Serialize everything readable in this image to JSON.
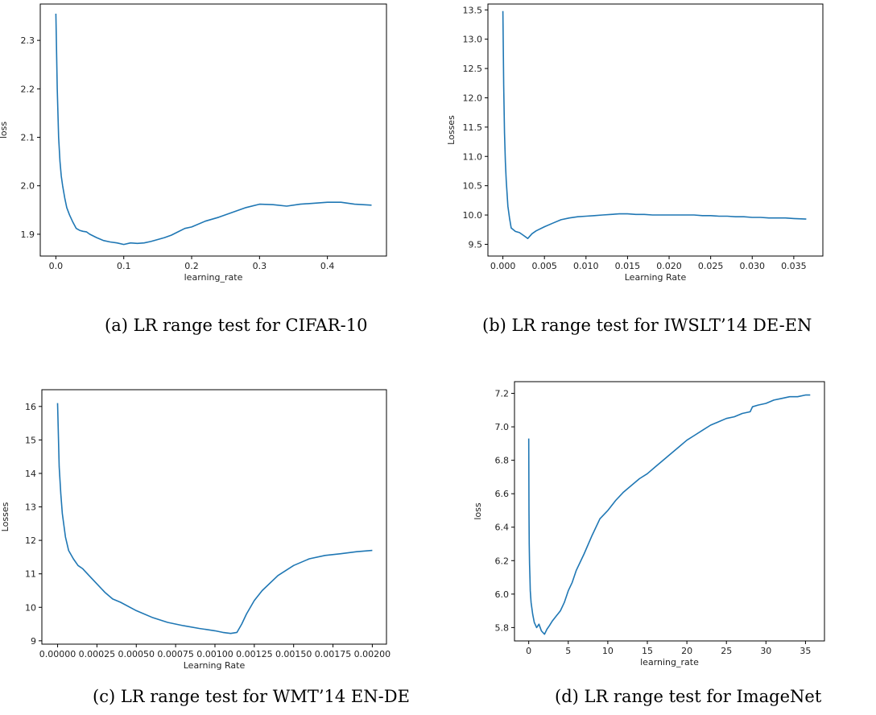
{
  "chart_data": [
    {
      "type": "line",
      "caption": "(a) LR range test for CIFAR-10",
      "xlabel": "learning_rate",
      "ylabel": "loss",
      "xlim": [
        -0.023,
        0.487
      ],
      "ylim": [
        1.855,
        2.375
      ],
      "xticks": [
        0.0,
        0.1,
        0.2,
        0.3,
        0.4
      ],
      "xtick_labels": [
        "0.0",
        "0.1",
        "0.2",
        "0.3",
        "0.4"
      ],
      "yticks": [
        1.9,
        2.0,
        2.1,
        2.2,
        2.3
      ],
      "ytick_labels": [
        "1.9",
        "2.0",
        "2.1",
        "2.2",
        "2.3"
      ],
      "series": [
        {
          "x": [
            0.0,
            0.002,
            0.004,
            0.006,
            0.008,
            0.01,
            0.013,
            0.016,
            0.02,
            0.025,
            0.03,
            0.035,
            0.04,
            0.045,
            0.05,
            0.06,
            0.07,
            0.08,
            0.09,
            0.1,
            0.11,
            0.12,
            0.13,
            0.14,
            0.15,
            0.16,
            0.17,
            0.18,
            0.19,
            0.2,
            0.22,
            0.24,
            0.26,
            0.28,
            0.3,
            0.32,
            0.34,
            0.36,
            0.38,
            0.4,
            0.42,
            0.44,
            0.465
          ],
          "y": [
            2.355,
            2.2,
            2.1,
            2.05,
            2.02,
            2.0,
            1.975,
            1.955,
            1.94,
            1.925,
            1.912,
            1.908,
            1.906,
            1.905,
            1.9,
            1.893,
            1.887,
            1.884,
            1.882,
            1.879,
            1.882,
            1.881,
            1.882,
            1.885,
            1.889,
            1.893,
            1.898,
            1.905,
            1.912,
            1.915,
            1.927,
            1.935,
            1.945,
            1.955,
            1.962,
            1.961,
            1.958,
            1.962,
            1.964,
            1.966,
            1.966,
            1.962,
            1.96
          ]
        }
      ]
    },
    {
      "type": "line",
      "caption": "(b) LR range test for IWSLT’14 DE-EN",
      "xlabel": "Learning Rate",
      "ylabel": "Losses",
      "xlim": [
        -0.0018,
        0.0385
      ],
      "ylim": [
        9.3,
        13.6
      ],
      "xticks": [
        0.0,
        0.005,
        0.01,
        0.015,
        0.02,
        0.025,
        0.03,
        0.035
      ],
      "xtick_labels": [
        "0.000",
        "0.005",
        "0.010",
        "0.015",
        "0.020",
        "0.025",
        "0.030",
        "0.035"
      ],
      "yticks": [
        9.5,
        10.0,
        10.5,
        11.0,
        11.5,
        12.0,
        12.5,
        13.0,
        13.5
      ],
      "ytick_labels": [
        "9.5",
        "10.0",
        "10.5",
        "11.0",
        "11.5",
        "12.0",
        "12.5",
        "13.0",
        "13.5"
      ],
      "series": [
        {
          "x": [
            0.0,
            0.0001,
            0.0002,
            0.0003,
            0.0004,
            0.0006,
            0.0008,
            0.001,
            0.0015,
            0.002,
            0.0025,
            0.003,
            0.0035,
            0.004,
            0.005,
            0.006,
            0.007,
            0.008,
            0.009,
            0.01,
            0.011,
            0.012,
            0.013,
            0.014,
            0.015,
            0.016,
            0.017,
            0.018,
            0.019,
            0.02,
            0.021,
            0.022,
            0.023,
            0.024,
            0.025,
            0.026,
            0.027,
            0.028,
            0.029,
            0.03,
            0.031,
            0.032,
            0.033,
            0.034,
            0.035,
            0.0365
          ],
          "y": [
            13.48,
            12.2,
            11.4,
            10.9,
            10.6,
            10.15,
            9.95,
            9.78,
            9.72,
            9.7,
            9.65,
            9.6,
            9.68,
            9.73,
            9.8,
            9.86,
            9.92,
            9.95,
            9.97,
            9.98,
            9.99,
            10.0,
            10.01,
            10.02,
            10.02,
            10.01,
            10.01,
            10.0,
            10.0,
            10.0,
            10.0,
            10.0,
            10.0,
            9.99,
            9.99,
            9.98,
            9.98,
            9.97,
            9.97,
            9.96,
            9.96,
            9.95,
            9.95,
            9.95,
            9.94,
            9.93
          ]
        }
      ]
    },
    {
      "type": "line",
      "caption": "(c) LR range test for WMT’14 EN-DE",
      "xlabel": "Learning Rate",
      "ylabel": "Losses",
      "xlim": [
        -0.0001,
        0.00209
      ],
      "ylim": [
        8.9,
        16.5
      ],
      "xticks": [
        0.0,
        0.00025,
        0.0005,
        0.00075,
        0.001,
        0.00125,
        0.0015,
        0.00175,
        0.002
      ],
      "xtick_labels": [
        "0.00000",
        "0.00025",
        "0.00050",
        "0.00075",
        "0.00100",
        "0.00125",
        "0.00150",
        "0.00175",
        "0.00200"
      ],
      "yticks": [
        9,
        10,
        11,
        12,
        13,
        14,
        15,
        16
      ],
      "ytick_labels": [
        "9",
        "10",
        "11",
        "12",
        "13",
        "14",
        "15",
        "16"
      ],
      "series": [
        {
          "x": [
            0.0,
            1e-05,
            2e-05,
            3e-05,
            5e-05,
            7e-05,
            0.0001,
            0.00013,
            0.00016,
            0.0002,
            0.00025,
            0.0003,
            0.00035,
            0.0004,
            0.0005,
            0.0006,
            0.0007,
            0.0008,
            0.0009,
            0.001,
            0.00105,
            0.0011,
            0.00114,
            0.00117,
            0.0012,
            0.00125,
            0.0013,
            0.0014,
            0.0015,
            0.0016,
            0.0017,
            0.0018,
            0.0019,
            0.002
          ],
          "y": [
            16.1,
            14.2,
            13.4,
            12.8,
            12.1,
            11.7,
            11.45,
            11.25,
            11.15,
            10.95,
            10.7,
            10.45,
            10.25,
            10.15,
            9.9,
            9.7,
            9.55,
            9.45,
            9.37,
            9.3,
            9.25,
            9.22,
            9.25,
            9.5,
            9.8,
            10.2,
            10.5,
            10.95,
            11.25,
            11.45,
            11.55,
            11.6,
            11.66,
            11.7
          ]
        }
      ]
    },
    {
      "type": "line",
      "caption": "(d) LR range test for ImageNet",
      "xlabel": "learning_rate",
      "ylabel": "loss",
      "xlim": [
        -1.8,
        37.4
      ],
      "ylim": [
        5.72,
        7.27
      ],
      "xticks": [
        0,
        5,
        10,
        15,
        20,
        25,
        30,
        35
      ],
      "xtick_labels": [
        "0",
        "5",
        "10",
        "15",
        "20",
        "25",
        "30",
        "35"
      ],
      "yticks": [
        5.8,
        6.0,
        6.2,
        6.4,
        6.6,
        6.8,
        7.0,
        7.2
      ],
      "ytick_labels": [
        "5.8",
        "6.0",
        "6.2",
        "6.4",
        "6.6",
        "6.8",
        "7.0",
        "7.2"
      ],
      "series": [
        {
          "x": [
            0.0,
            0.03,
            0.06,
            0.1,
            0.15,
            0.2,
            0.3,
            0.5,
            0.7,
            1.0,
            1.3,
            1.6,
            2.0,
            2.3,
            2.6,
            3.0,
            3.5,
            4.0,
            4.5,
            5.0,
            5.5,
            6.0,
            7.0,
            8.0,
            9.0,
            10.0,
            11.0,
            12.0,
            13.0,
            14.0,
            15.0,
            16.0,
            17.0,
            18.0,
            19.0,
            20.0,
            21.0,
            22.0,
            23.0,
            24.0,
            25.0,
            26.0,
            27.0,
            28.0,
            28.3,
            29.0,
            30.0,
            31.0,
            32.0,
            33.0,
            34.0,
            35.0,
            35.6
          ],
          "y": [
            6.93,
            6.5,
            6.3,
            6.18,
            6.1,
            6.02,
            5.95,
            5.88,
            5.83,
            5.8,
            5.82,
            5.78,
            5.76,
            5.79,
            5.81,
            5.84,
            5.87,
            5.9,
            5.95,
            6.02,
            6.07,
            6.14,
            6.24,
            6.35,
            6.45,
            6.5,
            6.56,
            6.61,
            6.65,
            6.69,
            6.72,
            6.76,
            6.8,
            6.84,
            6.88,
            6.92,
            6.95,
            6.98,
            7.01,
            7.03,
            7.05,
            7.06,
            7.08,
            7.09,
            7.12,
            7.13,
            7.14,
            7.16,
            7.17,
            7.18,
            7.18,
            7.19,
            7.19
          ]
        }
      ]
    }
  ]
}
